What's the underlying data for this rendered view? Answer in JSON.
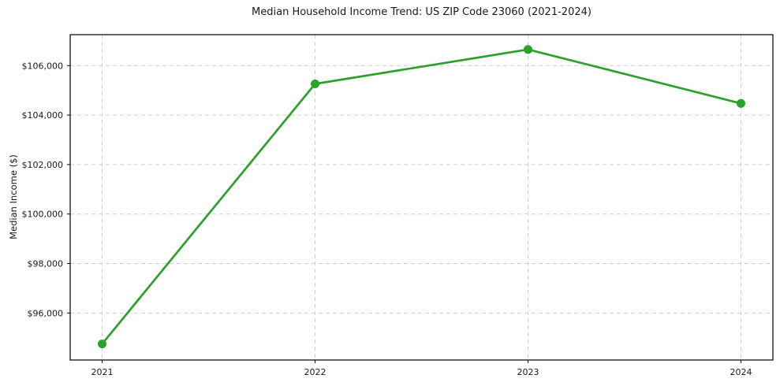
{
  "chart_data": {
    "type": "line",
    "title": "Median Household Income Trend: US ZIP Code 23060 (2021-2024)",
    "xlabel": "",
    "ylabel": "Median Income ($)",
    "x": [
      2021,
      2022,
      2023,
      2024
    ],
    "series": [
      {
        "name": "",
        "values": [
          94750,
          105260,
          106650,
          104470
        ]
      }
    ],
    "xticks": [
      2021,
      2022,
      2023,
      2024
    ],
    "xtick_labels": [
      "2021",
      "2022",
      "2023",
      "2024"
    ],
    "yticks": [
      96000,
      98000,
      100000,
      102000,
      104000,
      106000
    ],
    "ytick_labels": [
      "$96,000",
      "$98,000",
      "$100,000",
      "$102,000",
      "$104,000",
      "$106,000"
    ],
    "xlim": [
      2020.85,
      2024.15
    ],
    "ylim": [
      94100,
      107250
    ],
    "grid": true,
    "legend": "none",
    "line_color": "#2ca02c",
    "marker_color": "#2ca02c",
    "marker": "o",
    "background": "#ffffff",
    "spine_color": "#000000"
  }
}
